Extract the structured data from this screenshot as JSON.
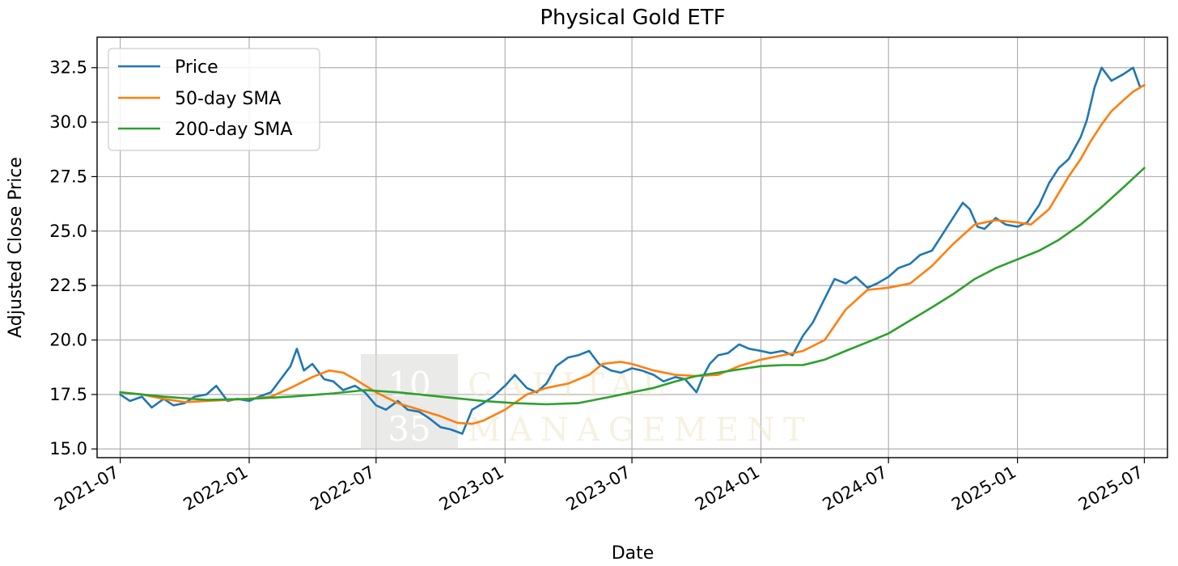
{
  "chart_data": {
    "type": "line",
    "title": "Physical Gold ETF",
    "xlabel": "Date",
    "ylabel": "Adjusted Close Price",
    "x_tick_labels": [
      "2021-07",
      "2022-01",
      "2022-07",
      "2023-01",
      "2023-07",
      "2024-01",
      "2024-07",
      "2025-01",
      "2025-07"
    ],
    "y_tick_labels": [
      "15.0",
      "17.5",
      "20.0",
      "22.5",
      "25.0",
      "27.5",
      "30.0",
      "32.5"
    ],
    "ylim": [
      14.6,
      33.9
    ],
    "xlim": [
      "2021-05-29",
      "2025-08-03"
    ],
    "grid": true,
    "legend_position": "upper left",
    "series": [
      {
        "name": "Price",
        "color": "#1f77b4",
        "x": [
          "2021-07-01",
          "2021-07-15",
          "2021-08-01",
          "2021-08-15",
          "2021-09-01",
          "2021-09-15",
          "2021-10-01",
          "2021-10-15",
          "2021-11-01",
          "2021-11-15",
          "2021-12-01",
          "2021-12-15",
          "2022-01-01",
          "2022-01-15",
          "2022-02-01",
          "2022-02-15",
          "2022-03-01",
          "2022-03-10",
          "2022-03-20",
          "2022-04-01",
          "2022-04-18",
          "2022-05-01",
          "2022-05-15",
          "2022-06-01",
          "2022-06-15",
          "2022-07-01",
          "2022-07-15",
          "2022-08-01",
          "2022-08-15",
          "2022-09-01",
          "2022-09-15",
          "2022-10-01",
          "2022-10-15",
          "2022-11-01",
          "2022-11-15",
          "2022-12-01",
          "2022-12-15",
          "2023-01-01",
          "2023-01-15",
          "2023-02-01",
          "2023-02-15",
          "2023-03-01",
          "2023-03-15",
          "2023-04-01",
          "2023-04-15",
          "2023-05-01",
          "2023-05-15",
          "2023-06-01",
          "2023-06-15",
          "2023-07-01",
          "2023-07-15",
          "2023-08-01",
          "2023-08-15",
          "2023-09-01",
          "2023-09-15",
          "2023-10-01",
          "2023-10-10",
          "2023-10-20",
          "2023-11-01",
          "2023-11-15",
          "2023-12-01",
          "2023-12-15",
          "2024-01-01",
          "2024-01-15",
          "2024-02-01",
          "2024-02-15",
          "2024-03-01",
          "2024-03-15",
          "2024-04-01",
          "2024-04-15",
          "2024-05-01",
          "2024-05-15",
          "2024-06-01",
          "2024-06-15",
          "2024-07-01",
          "2024-07-15",
          "2024-08-01",
          "2024-08-15",
          "2024-09-01",
          "2024-09-15",
          "2024-10-01",
          "2024-10-15",
          "2024-10-25",
          "2024-11-05",
          "2024-11-15",
          "2024-12-01",
          "2024-12-15",
          "2025-01-01",
          "2025-01-15",
          "2025-02-01",
          "2025-02-15",
          "2025-03-01",
          "2025-03-15",
          "2025-04-01",
          "2025-04-10",
          "2025-04-21",
          "2025-05-01",
          "2025-05-15",
          "2025-06-01",
          "2025-06-15",
          "2025-06-25",
          "2025-07-01"
        ],
        "values": [
          17.5,
          17.2,
          17.4,
          16.9,
          17.3,
          17.0,
          17.1,
          17.4,
          17.5,
          17.9,
          17.2,
          17.3,
          17.2,
          17.4,
          17.6,
          18.2,
          18.8,
          19.6,
          18.6,
          18.9,
          18.2,
          18.1,
          17.7,
          17.9,
          17.6,
          17.0,
          16.8,
          17.2,
          16.8,
          16.7,
          16.4,
          16.0,
          15.9,
          15.7,
          16.8,
          17.1,
          17.4,
          17.9,
          18.4,
          17.8,
          17.6,
          18.0,
          18.8,
          19.2,
          19.3,
          19.5,
          18.9,
          18.6,
          18.5,
          18.7,
          18.6,
          18.4,
          18.1,
          18.3,
          18.2,
          17.6,
          18.3,
          18.9,
          19.3,
          19.4,
          19.8,
          19.6,
          19.5,
          19.4,
          19.5,
          19.3,
          20.2,
          20.8,
          21.9,
          22.8,
          22.6,
          22.9,
          22.4,
          22.6,
          22.9,
          23.3,
          23.5,
          23.9,
          24.1,
          24.8,
          25.6,
          26.3,
          26.0,
          25.2,
          25.1,
          25.6,
          25.3,
          25.2,
          25.4,
          26.2,
          27.2,
          27.9,
          28.3,
          29.3,
          30.1,
          31.6,
          32.5,
          31.9,
          32.2,
          32.5,
          31.6,
          31.7
        ]
      },
      {
        "name": "50-day SMA",
        "color": "#ff7f0e",
        "x": [
          "2021-07-01",
          "2021-08-01",
          "2021-09-01",
          "2021-10-01",
          "2021-11-01",
          "2021-12-01",
          "2022-01-01",
          "2022-02-01",
          "2022-03-01",
          "2022-04-01",
          "2022-04-25",
          "2022-05-15",
          "2022-06-01",
          "2022-07-01",
          "2022-08-01",
          "2022-09-01",
          "2022-10-01",
          "2022-10-25",
          "2022-11-15",
          "2022-12-01",
          "2023-01-01",
          "2023-02-01",
          "2023-03-01",
          "2023-04-01",
          "2023-05-01",
          "2023-05-20",
          "2023-06-15",
          "2023-07-01",
          "2023-08-01",
          "2023-09-01",
          "2023-10-01",
          "2023-11-01",
          "2023-12-01",
          "2024-01-01",
          "2024-02-01",
          "2024-03-01",
          "2024-04-01",
          "2024-05-01",
          "2024-06-01",
          "2024-07-01",
          "2024-08-01",
          "2024-09-01",
          "2024-10-01",
          "2024-11-01",
          "2024-12-01",
          "2025-01-01",
          "2025-01-20",
          "2025-02-15",
          "2025-03-15",
          "2025-04-01",
          "2025-04-15",
          "2025-05-01",
          "2025-05-15",
          "2025-06-01",
          "2025-06-15",
          "2025-07-01"
        ],
        "values": [
          17.6,
          17.5,
          17.3,
          17.15,
          17.2,
          17.25,
          17.3,
          17.4,
          17.8,
          18.3,
          18.6,
          18.5,
          18.2,
          17.6,
          17.1,
          16.8,
          16.5,
          16.2,
          16.15,
          16.3,
          16.8,
          17.5,
          17.8,
          18.0,
          18.4,
          18.9,
          19.0,
          18.9,
          18.6,
          18.4,
          18.35,
          18.4,
          18.8,
          19.1,
          19.3,
          19.5,
          20.0,
          21.4,
          22.3,
          22.4,
          22.6,
          23.4,
          24.4,
          25.3,
          25.5,
          25.4,
          25.3,
          26.0,
          27.5,
          28.3,
          29.1,
          29.9,
          30.5,
          31.0,
          31.4,
          31.7
        ]
      },
      {
        "name": "200-day SMA",
        "color": "#2ca02c",
        "x": [
          "2021-07-01",
          "2021-09-01",
          "2021-11-01",
          "2022-01-01",
          "2022-03-01",
          "2022-05-01",
          "2022-06-15",
          "2022-08-01",
          "2022-10-01",
          "2022-12-01",
          "2023-01-15",
          "2023-03-01",
          "2023-04-15",
          "2023-06-01",
          "2023-07-01",
          "2023-08-01",
          "2023-09-01",
          "2023-10-01",
          "2023-11-01",
          "2023-12-01",
          "2024-01-01",
          "2024-02-01",
          "2024-03-01",
          "2024-04-01",
          "2024-05-01",
          "2024-06-01",
          "2024-07-01",
          "2024-08-01",
          "2024-09-01",
          "2024-10-01",
          "2024-11-01",
          "2024-12-01",
          "2025-01-01",
          "2025-02-01",
          "2025-03-01",
          "2025-04-01",
          "2025-05-01",
          "2025-06-01",
          "2025-07-01"
        ],
        "values": [
          17.6,
          17.4,
          17.25,
          17.3,
          17.4,
          17.55,
          17.7,
          17.6,
          17.4,
          17.2,
          17.1,
          17.05,
          17.1,
          17.4,
          17.6,
          17.8,
          18.1,
          18.35,
          18.5,
          18.65,
          18.8,
          18.85,
          18.85,
          19.1,
          19.5,
          19.9,
          20.3,
          20.9,
          21.5,
          22.1,
          22.8,
          23.3,
          23.7,
          24.1,
          24.6,
          25.3,
          26.1,
          27.0,
          27.9
        ]
      }
    ]
  },
  "watermark": {
    "logo_top": "10",
    "logo_bottom": "35",
    "text_top": "CAPITAL",
    "text_bottom": "MANAGEMENT"
  }
}
